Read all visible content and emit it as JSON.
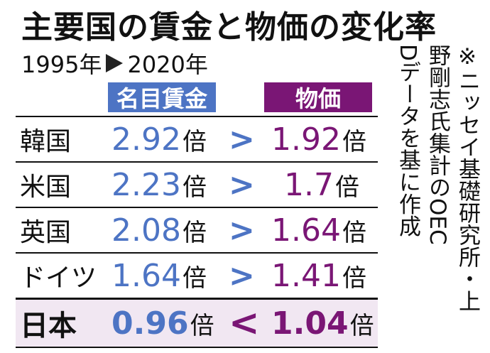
{
  "title": "主要国の賃金と物価の変化率",
  "period": {
    "start": "1995年",
    "end": "2020年"
  },
  "headers": {
    "wage": "名目賃金",
    "price": "物価"
  },
  "rows": [
    {
      "country": "韓国",
      "wage": "2.92",
      "unit": "倍",
      "cmp": ">",
      "price": "1.92"
    },
    {
      "country": "米国",
      "wage": "2.23",
      "unit": "倍",
      "cmp": ">",
      "price": "1.7"
    },
    {
      "country": "英国",
      "wage": "2.08",
      "unit": "倍",
      "cmp": ">",
      "price": "1.64"
    },
    {
      "country": "ドイツ",
      "wage": "1.64",
      "unit": "倍",
      "cmp": ">",
      "price": "1.41"
    },
    {
      "country": "日本",
      "wage": "0.96",
      "unit": "倍",
      "cmp": "<",
      "price": "1.04"
    }
  ],
  "source_note": {
    "line1": "※ニッセイ基礎研究所・上",
    "line2": "野剛志氏集計のOEC",
    "line3": "Dデータを基に作成"
  },
  "colors": {
    "wage": "#4d74c4",
    "price": "#7a1675",
    "japan_row_bg": "#f1e7f2"
  }
}
